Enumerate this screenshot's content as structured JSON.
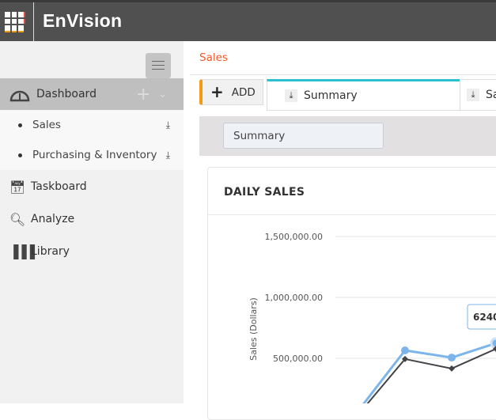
{
  "header": {
    "title": "EnVision",
    "icon": "apps-grid-icon"
  },
  "sidebar": {
    "dashboard": {
      "label": "Dashboard",
      "icon": "speedometer-icon"
    },
    "sub_items": [
      {
        "label": "Sales",
        "icon": "download-icon"
      },
      {
        "label": "Purchasing & Inventory",
        "icon": "download-icon"
      }
    ],
    "items": [
      {
        "label": "Taskboard",
        "icon": "calendar-icon"
      },
      {
        "label": "Analyze",
        "icon": "magnifier-chart-icon"
      },
      {
        "label": "Library",
        "icon": "books-icon"
      }
    ]
  },
  "breadcrumb": "Sales",
  "tabs": {
    "add_label": "ADD",
    "items": [
      {
        "label": "Summary"
      },
      {
        "label": "Sa"
      }
    ]
  },
  "selector": {
    "value": "Summary"
  },
  "accent": {
    "orange": "#f39c12",
    "teal": "#2bbfd0",
    "link": "#f05a28"
  },
  "chart_data": {
    "type": "line",
    "title": "DAILY SALES",
    "ylabel": "Sales (Dollars)",
    "yticks": [
      "500,000.00",
      "1,000,000.00",
      "1,500,000.00"
    ],
    "ylim": [
      0,
      1500000
    ],
    "grid": true,
    "series": [
      {
        "color": "#7cb5ec",
        "values": [
          71000,
          565000,
          506000,
          624000
        ]
      },
      {
        "color": "#434348",
        "values": [
          39000,
          494000,
          416000,
          578000
        ]
      }
    ],
    "tooltip": "6240"
  }
}
